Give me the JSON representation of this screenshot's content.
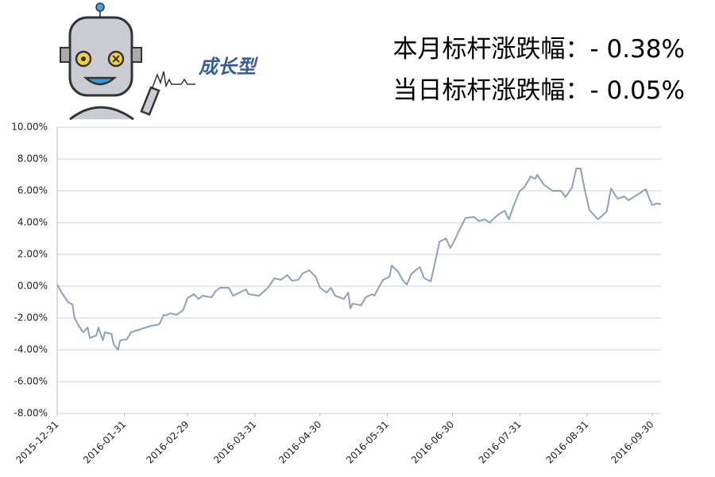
{
  "chart_data": {
    "type": "line",
    "annotations": [
      "本月标杆涨跌幅：- 0.38%",
      "当日标杆涨跌幅：- 0.05%"
    ],
    "logo_text": "成长型",
    "x": [
      "2015-12-31",
      "2016-01-02",
      "2016-01-05",
      "2016-01-07",
      "2016-01-08",
      "2016-01-10",
      "2016-01-12",
      "2016-01-14",
      "2016-01-15",
      "2016-01-18",
      "2016-01-19",
      "2016-01-21",
      "2016-01-22",
      "2016-01-25",
      "2016-01-26",
      "2016-01-28",
      "2016-01-29",
      "2016-02-01",
      "2016-02-03",
      "2016-02-12",
      "2016-02-16",
      "2016-02-18",
      "2016-02-19",
      "2016-02-21",
      "2016-02-24",
      "2016-02-27",
      "2016-02-29",
      "2016-03-03",
      "2016-03-05",
      "2016-03-07",
      "2016-03-11",
      "2016-03-13",
      "2016-03-15",
      "2016-03-19",
      "2016-03-21",
      "2016-03-24",
      "2016-03-27",
      "2016-03-28",
      "2016-04-02",
      "2016-04-06",
      "2016-04-09",
      "2016-04-12",
      "2016-04-15",
      "2016-04-17",
      "2016-04-20",
      "2016-04-22",
      "2016-04-25",
      "2016-04-28",
      "2016-04-30",
      "2016-05-03",
      "2016-05-05",
      "2016-05-07",
      "2016-05-11",
      "2016-05-13",
      "2016-05-14",
      "2016-05-15",
      "2016-05-19",
      "2016-05-21",
      "2016-05-24",
      "2016-05-25",
      "2016-05-27",
      "2016-05-29",
      "2016-06-01",
      "2016-06-02",
      "2016-06-05",
      "2016-06-07",
      "2016-06-09",
      "2016-06-11",
      "2016-06-13",
      "2016-06-15",
      "2016-06-17",
      "2016-06-20",
      "2016-06-22",
      "2016-06-24",
      "2016-06-27",
      "2016-06-29",
      "2016-07-01",
      "2016-07-03",
      "2016-07-06",
      "2016-07-10",
      "2016-07-12",
      "2016-07-15",
      "2016-07-17",
      "2016-07-21",
      "2016-07-24",
      "2016-07-26",
      "2016-07-28",
      "2016-07-31",
      "2016-08-02",
      "2016-08-05",
      "2016-08-07",
      "2016-08-08",
      "2016-08-11",
      "2016-08-13",
      "2016-08-15",
      "2016-08-19",
      "2016-08-21",
      "2016-08-24",
      "2016-08-26",
      "2016-08-28",
      "2016-08-30",
      "2016-09-01",
      "2016-09-05",
      "2016-09-09",
      "2016-09-11",
      "2016-09-14",
      "2016-09-17",
      "2016-09-19",
      "2016-09-22",
      "2016-09-27",
      "2016-09-29",
      "2016-09-30",
      "2016-10-02",
      "2016-10-04"
    ],
    "series": [
      {
        "color": "#8fa1b9",
        "values": [
          0.1,
          -0.4,
          -1.0,
          -1.15,
          -2.0,
          -2.5,
          -2.9,
          -2.6,
          -3.25,
          -3.1,
          -2.6,
          -3.4,
          -2.9,
          -3.0,
          -3.65,
          -4.0,
          -3.4,
          -3.35,
          -2.9,
          -2.5,
          -2.4,
          -1.8,
          -1.85,
          -1.7,
          -1.8,
          -1.5,
          -0.75,
          -0.5,
          -0.8,
          -0.6,
          -0.7,
          -0.3,
          -0.1,
          -0.1,
          -0.6,
          -0.4,
          -0.2,
          -0.5,
          -0.6,
          -0.1,
          0.5,
          0.4,
          0.7,
          0.35,
          0.4,
          0.8,
          1.0,
          0.6,
          -0.1,
          -0.4,
          -0.1,
          -0.6,
          -0.8,
          -0.4,
          -1.4,
          -1.1,
          -1.2,
          -0.7,
          -0.5,
          -0.6,
          -0.1,
          0.4,
          0.6,
          1.3,
          0.9,
          0.4,
          0.1,
          0.75,
          1.0,
          1.2,
          0.5,
          0.3,
          1.5,
          2.8,
          3.0,
          2.4,
          2.9,
          3.5,
          4.3,
          4.35,
          4.1,
          4.2,
          4.0,
          4.5,
          4.75,
          4.2,
          5.0,
          6.0,
          6.2,
          6.9,
          6.75,
          7.0,
          6.4,
          6.2,
          6.0,
          6.0,
          5.6,
          6.2,
          7.4,
          7.4,
          6.0,
          4.8,
          4.2,
          4.7,
          6.15,
          5.5,
          5.65,
          5.4,
          5.65,
          6.1,
          5.4,
          5.1,
          5.2,
          5.15
        ]
      }
    ],
    "xlim": [
      "2015-12-31",
      "2016-10-04"
    ],
    "xticks": [
      "2015-12-31",
      "2016-01-31",
      "2016-02-29",
      "2016-03-31",
      "2016-04-30",
      "2016-05-31",
      "2016-06-30",
      "2016-07-31",
      "2016-08-31",
      "2016-09-30"
    ],
    "ylim": [
      -8,
      10
    ],
    "yticks": [
      {
        "value": -8,
        "label": "-8.00%"
      },
      {
        "value": -6,
        "label": "-6.00%"
      },
      {
        "value": -4,
        "label": "-4.00%"
      },
      {
        "value": -2,
        "label": "-2.00%"
      },
      {
        "value": 0,
        "label": "0.00%"
      },
      {
        "value": 2,
        "label": "2.00%"
      },
      {
        "value": 4,
        "label": "4.00%"
      },
      {
        "value": 6,
        "label": "6.00%"
      },
      {
        "value": 8,
        "label": "8.00%"
      },
      {
        "value": 10,
        "label": "10.00%"
      }
    ],
    "grid": true
  }
}
